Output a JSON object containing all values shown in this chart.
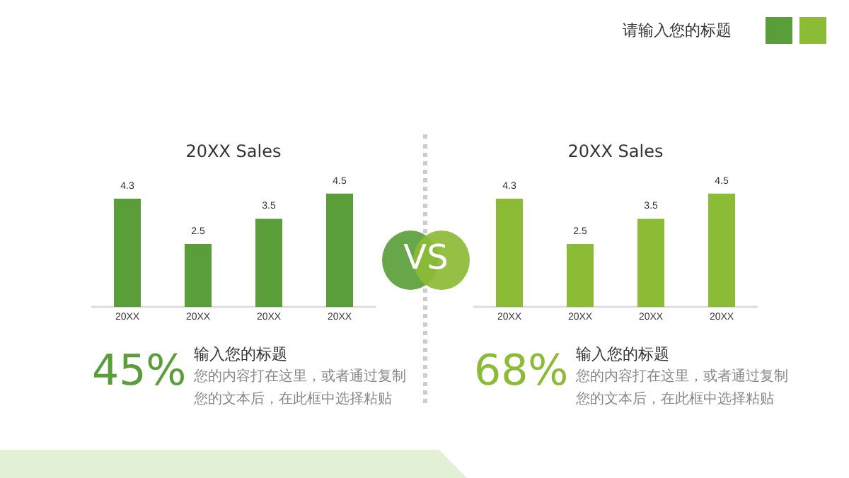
{
  "chart_data": [
    {
      "type": "bar",
      "title": "20XX Sales",
      "categories": [
        "20XX",
        "20XX",
        "20XX",
        "20XX"
      ],
      "values": [
        4.3,
        2.5,
        3.5,
        4.5
      ],
      "color": "#5a9e3a",
      "data_labels": true,
      "annotations": [
        "45%",
        "输入您的标题",
        "您的内容打在这里，或者通过复制您的文本后，在此框中选择粘贴"
      ]
    },
    {
      "type": "bar",
      "title": "20XX Sales",
      "categories": [
        "20XX",
        "20XX",
        "20XX",
        "20XX"
      ],
      "values": [
        4.3,
        2.5,
        3.5,
        4.5
      ],
      "color": "#8cbb35",
      "data_labels": true,
      "annotations": [
        "68%",
        "输入您的标题",
        "您的内容打在这里，或者通过复制您的文本后，在此框中选择粘贴"
      ]
    },
    {
      "type": "other",
      "title": "请输入您的标题",
      "annotations": [
        "VS"
      ]
    }
  ]
}
